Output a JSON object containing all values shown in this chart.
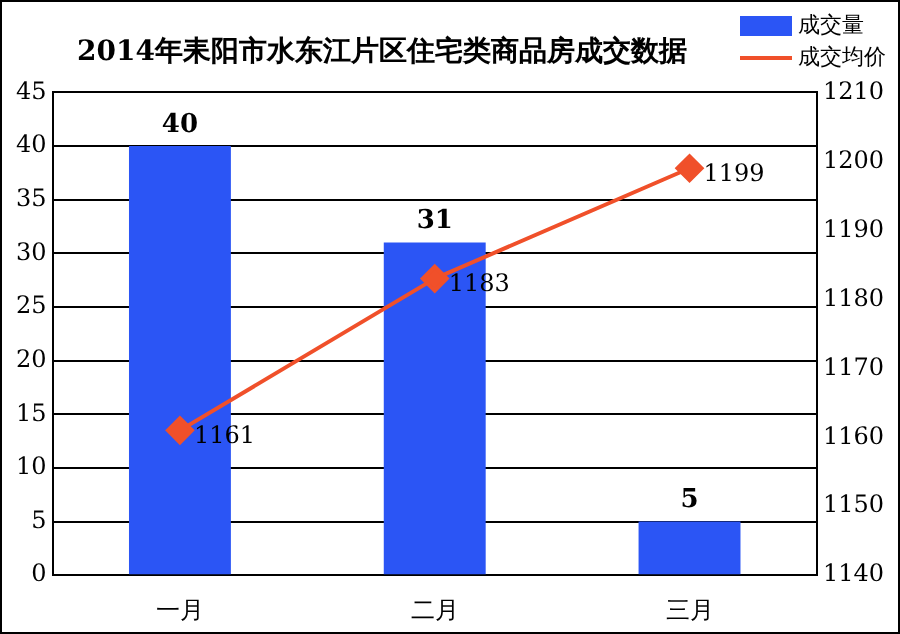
{
  "chart_data": {
    "type": "bar",
    "title": "2014年耒阳市水东江片区住宅类商品房成交数据",
    "categories": [
      "一月",
      "二月",
      "三月"
    ],
    "series": [
      {
        "name": "成交量",
        "color": "#2b55f5",
        "values": [
          40,
          31,
          5
        ]
      },
      {
        "name": "成交均价",
        "type": "line",
        "axis": "y2",
        "color": "#f0502a",
        "values": [
          1161,
          1183,
          1199
        ],
        "marker": "diamond"
      }
    ],
    "ylim": [
      0,
      45
    ],
    "yticks": [
      0,
      5,
      10,
      15,
      20,
      25,
      30,
      35,
      40,
      45
    ],
    "y2lim": [
      1140,
      1210
    ],
    "y2ticks": [
      1140,
      1150,
      1160,
      1170,
      1180,
      1190,
      1200,
      1210
    ],
    "data_labels": true,
    "grid": "y",
    "legend": "top right"
  }
}
